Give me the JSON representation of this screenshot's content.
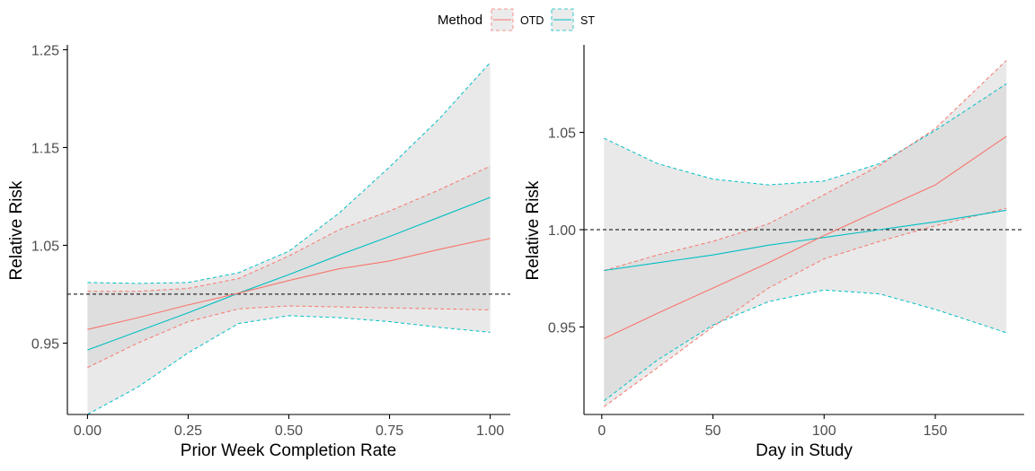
{
  "legend": {
    "title": "Method",
    "entries": [
      {
        "label": "OTD",
        "color": "#F8766D"
      },
      {
        "label": "ST",
        "color": "#00BFC4"
      }
    ]
  },
  "chart_data": [
    {
      "type": "line",
      "title": "",
      "xlabel": "Prior Week Completion Rate",
      "ylabel": "Relative Risk",
      "xlim": [
        -0.05,
        1.05
      ],
      "ylim": [
        0.877,
        1.255
      ],
      "xticks": [
        0,
        0.25,
        0.5,
        0.75,
        1
      ],
      "xtick_labels": [
        "0.00",
        "0.25",
        "0.50",
        "0.75",
        "1.00"
      ],
      "yticks": [
        0.95,
        1.05,
        1.15,
        1.25
      ],
      "ytick_labels": [
        "0.95",
        "1.05",
        "1.15",
        "1.25"
      ],
      "reference_line": 1.0,
      "band_fill": "#D3D3D3",
      "ref_color": "#000000",
      "series": [
        {
          "name": "ST",
          "color": "#00BFC4",
          "x": [
            0,
            0.125,
            0.25,
            0.375,
            0.5,
            0.625,
            0.75,
            0.875,
            1.0
          ],
          "estimate": [
            0.943,
            0.962,
            0.981,
            1.001,
            1.02,
            1.04,
            1.059,
            1.079,
            1.099
          ],
          "lower": [
            0.877,
            0.905,
            0.94,
            0.97,
            0.978,
            0.976,
            0.972,
            0.966,
            0.961
          ],
          "upper": [
            1.012,
            1.011,
            1.012,
            1.022,
            1.044,
            1.083,
            1.13,
            1.18,
            1.237
          ]
        },
        {
          "name": "OTD",
          "color": "#F8766D",
          "x": [
            0,
            0.125,
            0.25,
            0.375,
            0.5,
            0.625,
            0.75,
            0.875,
            1.0
          ],
          "estimate": [
            0.964,
            0.976,
            0.989,
            1.001,
            1.014,
            1.026,
            1.034,
            1.046,
            1.057
          ],
          "lower": [
            0.925,
            0.95,
            0.972,
            0.985,
            0.988,
            0.987,
            0.986,
            0.985,
            0.984
          ],
          "upper": [
            1.003,
            1.003,
            1.006,
            1.016,
            1.039,
            1.066,
            1.085,
            1.107,
            1.131
          ]
        }
      ]
    },
    {
      "type": "line",
      "title": "",
      "xlabel": "Day in Study",
      "ylabel": "Relative Risk",
      "xlim": [
        -8,
        190
      ],
      "ylim": [
        0.905,
        1.095
      ],
      "xticks": [
        0,
        50,
        100,
        150
      ],
      "xtick_labels": [
        "0",
        "50",
        "100",
        "150"
      ],
      "yticks": [
        0.95,
        1.0,
        1.05
      ],
      "ytick_labels": [
        "0.95",
        "1.00",
        "1.05"
      ],
      "reference_line": 1.0,
      "band_fill": "#D3D3D3",
      "ref_color": "#000000",
      "series": [
        {
          "name": "ST",
          "color": "#00BFC4",
          "x": [
            1,
            25,
            50,
            75,
            100,
            125,
            150,
            182
          ],
          "estimate": [
            0.979,
            0.983,
            0.987,
            0.992,
            0.996,
            1.0,
            1.004,
            1.01
          ],
          "lower": [
            0.912,
            0.933,
            0.951,
            0.963,
            0.969,
            0.967,
            0.959,
            0.947
          ],
          "upper": [
            1.047,
            1.034,
            1.026,
            1.023,
            1.025,
            1.034,
            1.051,
            1.075
          ]
        },
        {
          "name": "OTD",
          "color": "#F8766D",
          "x": [
            1,
            25,
            50,
            75,
            100,
            125,
            150,
            182
          ],
          "estimate": [
            0.944,
            0.957,
            0.97,
            0.983,
            0.997,
            1.01,
            1.023,
            1.048
          ],
          "lower": [
            0.909,
            0.929,
            0.95,
            0.97,
            0.985,
            0.994,
            1.002,
            1.011
          ],
          "upper": [
            0.979,
            0.987,
            0.994,
            1.003,
            1.018,
            1.033,
            1.052,
            1.087
          ]
        }
      ]
    }
  ]
}
